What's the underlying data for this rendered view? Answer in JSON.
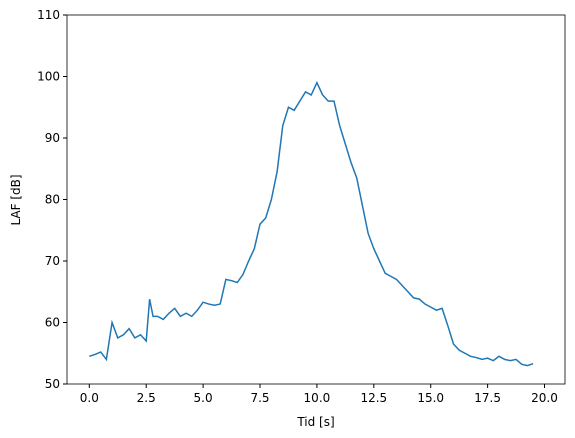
{
  "chart_data": {
    "type": "line",
    "xlabel": "Tid [s]",
    "ylabel": "LAF [dB]",
    "x": [
      0.0,
      0.25,
      0.5,
      0.75,
      1.0,
      1.25,
      1.5,
      1.75,
      2.0,
      2.25,
      2.5,
      2.65,
      2.8,
      3.0,
      3.25,
      3.5,
      3.75,
      4.0,
      4.25,
      4.5,
      4.75,
      5.0,
      5.25,
      5.5,
      5.75,
      6.0,
      6.25,
      6.5,
      6.75,
      7.0,
      7.25,
      7.5,
      7.75,
      8.0,
      8.25,
      8.5,
      8.75,
      9.0,
      9.25,
      9.5,
      9.75,
      10.0,
      10.25,
      10.5,
      10.75,
      11.0,
      11.25,
      11.5,
      11.75,
      12.0,
      12.25,
      12.5,
      12.75,
      13.0,
      13.25,
      13.5,
      13.75,
      14.0,
      14.25,
      14.5,
      14.75,
      15.0,
      15.25,
      15.5,
      15.75,
      16.0,
      16.25,
      16.5,
      16.75,
      17.0,
      17.25,
      17.5,
      17.75,
      18.0,
      18.25,
      18.5,
      18.75,
      19.0,
      19.25,
      19.5
    ],
    "series": [
      {
        "name": "LAF",
        "color": "#1f77b4",
        "values": [
          54.5,
          54.8,
          55.2,
          54,
          60,
          57.5,
          58,
          59,
          57.5,
          58,
          57,
          63.8,
          61,
          61,
          60.5,
          61.5,
          62.3,
          61,
          61.5,
          61,
          62,
          63.3,
          63,
          62.8,
          63,
          67,
          66.8,
          66.5,
          67.8,
          70,
          72,
          76,
          77,
          80,
          84.5,
          92,
          95,
          94.5,
          96,
          97.5,
          97,
          99,
          97,
          96,
          96,
          92,
          89,
          86,
          83.5,
          79,
          74.5,
          72,
          70,
          68,
          67.5,
          67,
          66,
          65,
          64,
          63.8,
          63,
          62.5,
          62,
          62.3,
          59.5,
          56.5,
          55.5,
          55,
          54.5,
          54.3,
          54,
          54.2,
          53.8,
          54.5,
          54,
          53.8,
          54,
          53.2,
          53,
          53.3
        ]
      }
    ],
    "xlim": [
      -0.98,
      20.9
    ],
    "ylim": [
      50,
      110
    ],
    "xticks": [
      {
        "value": 0,
        "label": "0.0"
      },
      2.5,
      {
        "value": 5,
        "label": "5.0"
      },
      7.5,
      {
        "value": 10,
        "label": "10.0"
      },
      12.5,
      {
        "value": 15,
        "label": "15.0"
      },
      17.5,
      {
        "value": 20,
        "label": "20.0"
      }
    ],
    "yticks": [
      50,
      60,
      70,
      80,
      90,
      100,
      110
    ]
  }
}
